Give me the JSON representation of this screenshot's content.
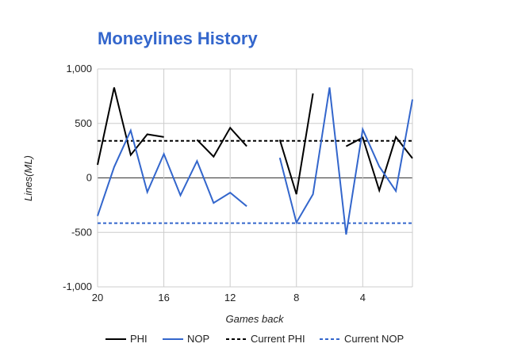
{
  "chart_data": {
    "type": "line",
    "title": "Moneylines History",
    "xlabel": "Games back",
    "ylabel": "Lines(ML)",
    "xlim": [
      20,
      1
    ],
    "ylim": [
      -1000,
      1000
    ],
    "x_ticks": [
      20,
      16,
      12,
      8,
      4
    ],
    "x_tick_labels": [
      "20",
      "16",
      "12",
      "8",
      "4"
    ],
    "y_ticks": [
      1000,
      500,
      0,
      -500,
      -1000
    ],
    "y_tick_labels": [
      "1,000",
      "500",
      "0",
      "-500",
      "-1,000"
    ],
    "grid": true,
    "legend_position": "bottom",
    "x": [
      20,
      19,
      18,
      17,
      16,
      15,
      14,
      13,
      12,
      11,
      10,
      9,
      8,
      7,
      6,
      5,
      4,
      3,
      2,
      1
    ],
    "series": [
      {
        "name": "PHI",
        "color": "#000000",
        "style": "solid",
        "values": [
          120,
          830,
          210,
          400,
          375,
          null,
          350,
          195,
          460,
          290,
          null,
          350,
          -150,
          775,
          null,
          290,
          370,
          -115,
          375,
          180
        ]
      },
      {
        "name": "NOP",
        "color": "#3366cc",
        "style": "solid",
        "values": [
          -350,
          100,
          435,
          -130,
          220,
          -160,
          155,
          -230,
          -135,
          -260,
          null,
          185,
          -410,
          -150,
          830,
          -520,
          445,
          105,
          -120,
          720
        ]
      },
      {
        "name": "Current PHI",
        "color": "#000000",
        "style": "dashed",
        "constant": 340
      },
      {
        "name": "Current NOP",
        "color": "#3366cc",
        "style": "dashed",
        "constant": -415
      }
    ]
  }
}
